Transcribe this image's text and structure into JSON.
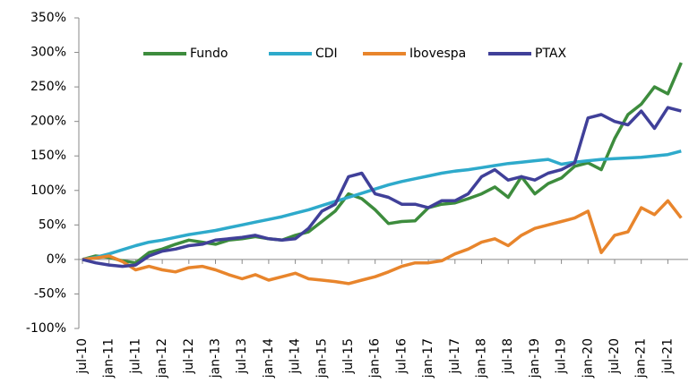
{
  "chart_data": {
    "type": "line",
    "categories": [
      "jul-10",
      null,
      "jan-11",
      null,
      "jul-11",
      null,
      "jan-12",
      null,
      "jul-12",
      null,
      "jan-13",
      null,
      "jul-13",
      null,
      "jan-14",
      null,
      "jul-14",
      null,
      "jan-15",
      null,
      "jul-15",
      null,
      "jan-16",
      null,
      "jul-16",
      null,
      "jan-17",
      null,
      "jul-17",
      null,
      "jan-18",
      null,
      "jul-18",
      null,
      "jan-19",
      null,
      "jul-19",
      null,
      "jan-20",
      null,
      "jul-20",
      null,
      "jan-21",
      null,
      "jul-21",
      null
    ],
    "series": [
      {
        "name": "Fundo",
        "color": "#3d8c3d",
        "values": [
          0,
          5,
          3,
          -2,
          -5,
          10,
          15,
          22,
          28,
          25,
          22,
          28,
          30,
          33,
          30,
          28,
          35,
          40,
          55,
          70,
          95,
          88,
          72,
          52,
          55,
          56,
          75,
          80,
          82,
          88,
          95,
          105,
          90,
          120,
          95,
          110,
          118,
          135,
          140,
          130,
          175,
          210,
          225,
          250,
          240,
          285
        ]
      },
      {
        "name": "CDI",
        "color": "#2eaacb",
        "values": [
          0,
          3,
          8,
          14,
          20,
          25,
          28,
          32,
          36,
          39,
          42,
          46,
          50,
          54,
          58,
          62,
          67,
          72,
          78,
          84,
          90,
          96,
          102,
          108,
          113,
          117,
          121,
          125,
          128,
          130,
          133,
          136,
          139,
          141,
          143,
          145,
          138,
          141,
          143,
          145,
          146,
          147,
          148,
          150,
          152,
          157
        ]
      },
      {
        "name": "Ibovespa",
        "color": "#e8852c",
        "values": [
          0,
          2,
          5,
          -3,
          -15,
          -10,
          -15,
          -18,
          -12,
          -10,
          -15,
          -22,
          -28,
          -22,
          -30,
          -25,
          -20,
          -28,
          -30,
          -32,
          -35,
          -30,
          -25,
          -18,
          -10,
          -5,
          -5,
          -2,
          8,
          15,
          25,
          30,
          20,
          35,
          45,
          50,
          55,
          60,
          70,
          10,
          35,
          40,
          75,
          65,
          85,
          60
        ]
      },
      {
        "name": "PTAX",
        "color": "#404099",
        "values": [
          0,
          -5,
          -8,
          -10,
          -8,
          5,
          12,
          15,
          20,
          22,
          28,
          30,
          32,
          35,
          30,
          28,
          30,
          45,
          70,
          80,
          120,
          125,
          95,
          90,
          80,
          80,
          75,
          85,
          85,
          95,
          120,
          130,
          115,
          120,
          115,
          125,
          130,
          140,
          205,
          210,
          200,
          195,
          215,
          190,
          220,
          215
        ]
      }
    ],
    "ylim": [
      -100,
      350
    ],
    "yticks": [
      {
        "value": -100,
        "label": "-100%"
      },
      {
        "value": -50,
        "label": "-50%"
      },
      {
        "value": 0,
        "label": "0%"
      },
      {
        "value": 50,
        "label": "50%"
      },
      {
        "value": 100,
        "label": "100%"
      },
      {
        "value": 150,
        "label": "150%"
      },
      {
        "value": 200,
        "label": "200%"
      },
      {
        "value": 250,
        "label": "250%"
      },
      {
        "value": 300,
        "label": "300%"
      },
      {
        "value": 350,
        "label": "350%"
      }
    ],
    "legend": "top"
  }
}
